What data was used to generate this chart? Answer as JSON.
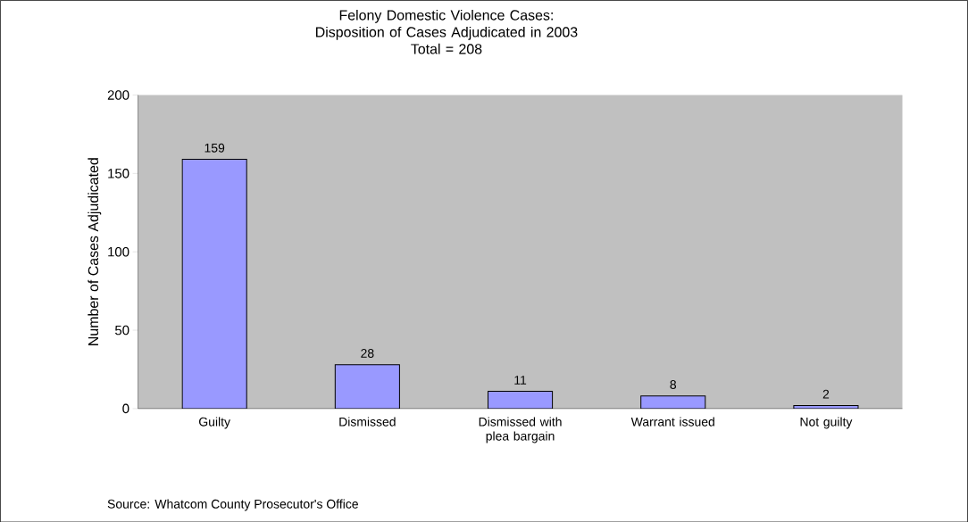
{
  "chart_data": {
    "type": "bar",
    "title": "Felony Domestic Violence Cases: Disposition of Cases Adjudicated in 2003",
    "subtitle": "Total = 208",
    "ylabel": "Number of Cases Adjudicated",
    "categories": [
      "Guilty",
      "Dismissed",
      "Dismissed with plea bargain",
      "Warrant issued",
      "Not guilty"
    ],
    "values": [
      159,
      28,
      11,
      8,
      2
    ],
    "color": "#9999ff",
    "ylim": [
      0,
      200
    ],
    "yticks": [
      0,
      50,
      100,
      150,
      200
    ],
    "data_labels": true,
    "grid": false,
    "annotations": [
      "Source:  Whatcom County Prosecutor's Office"
    ]
  }
}
